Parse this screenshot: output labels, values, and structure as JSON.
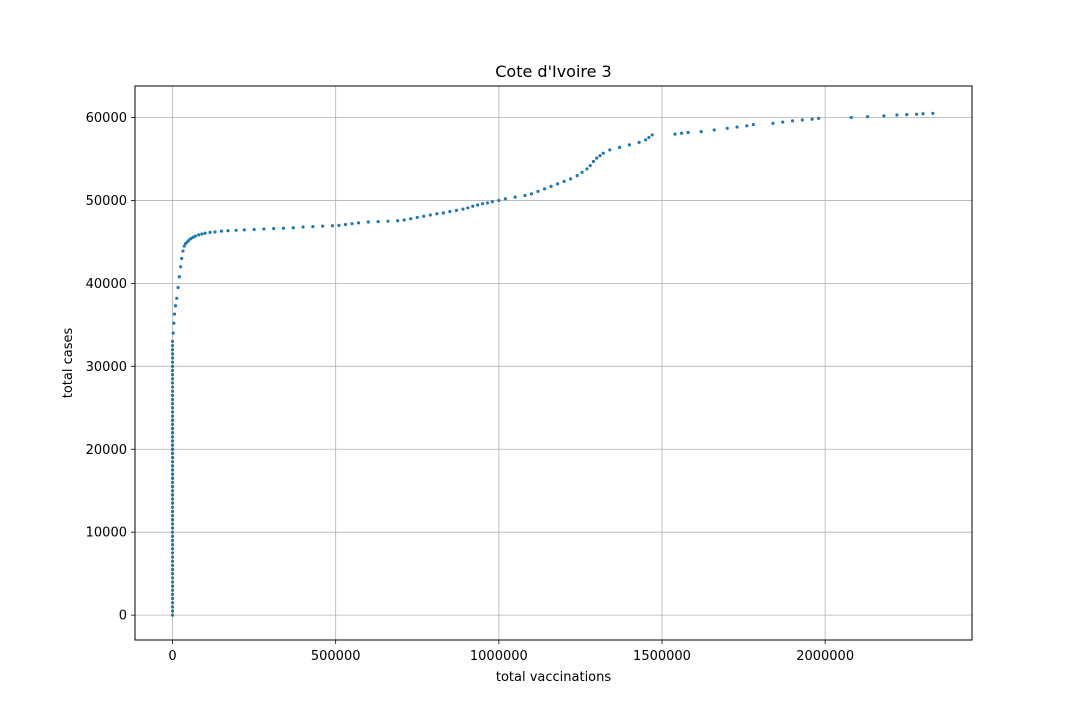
{
  "chart_data": {
    "type": "scatter",
    "title": "Cote d'Ivoire 3",
    "xlabel": "total vaccinations",
    "ylabel": "total cases",
    "xlim": [
      -115000,
      2450000
    ],
    "ylim": [
      -3000,
      63800
    ],
    "xticks": [
      0,
      500000,
      1000000,
      1500000,
      2000000
    ],
    "xtick_labels": [
      "0",
      "500000",
      "1000000",
      "1500000",
      "2000000"
    ],
    "yticks": [
      0,
      10000,
      20000,
      30000,
      40000,
      50000,
      60000
    ],
    "ytick_labels": [
      "0",
      "10000",
      "20000",
      "30000",
      "40000",
      "50000",
      "60000"
    ],
    "grid": true,
    "marker_color": "#1f77b4",
    "series": [
      {
        "x": [
          0,
          0,
          0,
          0,
          0,
          0,
          0,
          0,
          0,
          0,
          0,
          0,
          0,
          0,
          0,
          0,
          0,
          0,
          0,
          0,
          0,
          0,
          0,
          0,
          0,
          0,
          0,
          0,
          0,
          0,
          0,
          0,
          0,
          0,
          0,
          0,
          0,
          0,
          0,
          0,
          0,
          0,
          0,
          0,
          0,
          0,
          0,
          0,
          0,
          0,
          0,
          0,
          0,
          0,
          0,
          0,
          0,
          0,
          0,
          0,
          0,
          0,
          0,
          0,
          0,
          0,
          0,
          0,
          0,
          0,
          0,
          0,
          0,
          0,
          0,
          0,
          0,
          0,
          0,
          0,
          0,
          0,
          0,
          0,
          0,
          0,
          2000,
          4000,
          6000,
          9000,
          13000,
          17000,
          21000,
          25000,
          28000,
          32000,
          36000,
          40000,
          45000,
          50000,
          56000,
          63000,
          70000,
          80000,
          90000,
          100000,
          115000,
          130000,
          150000,
          170000,
          195000,
          220000,
          250000,
          280000,
          310000,
          340000,
          370000,
          400000,
          430000,
          460000,
          490000,
          510000,
          530000,
          550000,
          570000,
          600000,
          630000,
          660000,
          690000,
          710000,
          730000,
          750000,
          770000,
          790000,
          810000,
          830000,
          850000,
          870000,
          890000,
          905000,
          920000,
          935000,
          950000,
          965000,
          980000,
          1000000,
          1020000,
          1050000,
          1080000,
          1100000,
          1120000,
          1140000,
          1160000,
          1180000,
          1200000,
          1220000,
          1240000,
          1255000,
          1270000,
          1280000,
          1290000,
          1300000,
          1310000,
          1320000,
          1340000,
          1370000,
          1400000,
          1430000,
          1450000,
          1460000,
          1470000,
          1540000,
          1560000,
          1580000,
          1620000,
          1660000,
          1700000,
          1730000,
          1760000,
          1780000,
          1840000,
          1870000,
          1900000,
          1930000,
          1960000,
          1980000,
          2080000,
          2130000,
          2180000,
          2220000,
          2250000,
          2280000,
          2300000,
          2330000
        ],
        "y": [
          0,
          500,
          1000,
          1500,
          2000,
          2500,
          3000,
          3500,
          4000,
          4500,
          5000,
          5500,
          6000,
          6500,
          7000,
          7500,
          8000,
          8500,
          9000,
          9500,
          10000,
          10500,
          11000,
          11500,
          12000,
          12500,
          13000,
          13500,
          14000,
          14500,
          15000,
          15500,
          16000,
          16500,
          17000,
          17500,
          18000,
          18500,
          19000,
          19500,
          20000,
          20500,
          21000,
          21500,
          22000,
          22500,
          23000,
          23500,
          24000,
          24500,
          25000,
          25500,
          26000,
          26500,
          27000,
          27500,
          28000,
          28500,
          29000,
          29500,
          30000,
          30500,
          31000,
          31500,
          32000,
          32500,
          33000,
          18000,
          19000,
          20000,
          21000,
          22000,
          20500,
          21500,
          19500,
          22500,
          17500,
          16500,
          23500,
          24500,
          15500,
          14500,
          13500,
          12500,
          11500,
          10500,
          34000,
          35200,
          36300,
          37300,
          38200,
          39500,
          40800,
          42000,
          43000,
          43900,
          44500,
          44800,
          45000,
          45200,
          45400,
          45550,
          45700,
          45850,
          45950,
          46050,
          46150,
          46200,
          46300,
          46350,
          46400,
          46450,
          46500,
          46550,
          46600,
          46650,
          46700,
          46800,
          46850,
          46900,
          46950,
          47000,
          47100,
          47200,
          47300,
          47400,
          47450,
          47500,
          47550,
          47650,
          47800,
          47950,
          48100,
          48250,
          48400,
          48500,
          48650,
          48800,
          48950,
          49100,
          49300,
          49450,
          49600,
          49700,
          49850,
          50000,
          50200,
          50400,
          50600,
          50800,
          51100,
          51400,
          51700,
          52000,
          52300,
          52600,
          53000,
          53400,
          53800,
          54200,
          54700,
          55100,
          55400,
          55700,
          56100,
          56400,
          56700,
          57000,
          57300,
          57600,
          57900,
          58000,
          58100,
          58200,
          58300,
          58500,
          58700,
          58850,
          59000,
          59150,
          59300,
          59450,
          59600,
          59700,
          59800,
          59900,
          60000,
          60100,
          60200,
          60300,
          60350,
          60400,
          60450,
          60500
        ]
      }
    ]
  }
}
